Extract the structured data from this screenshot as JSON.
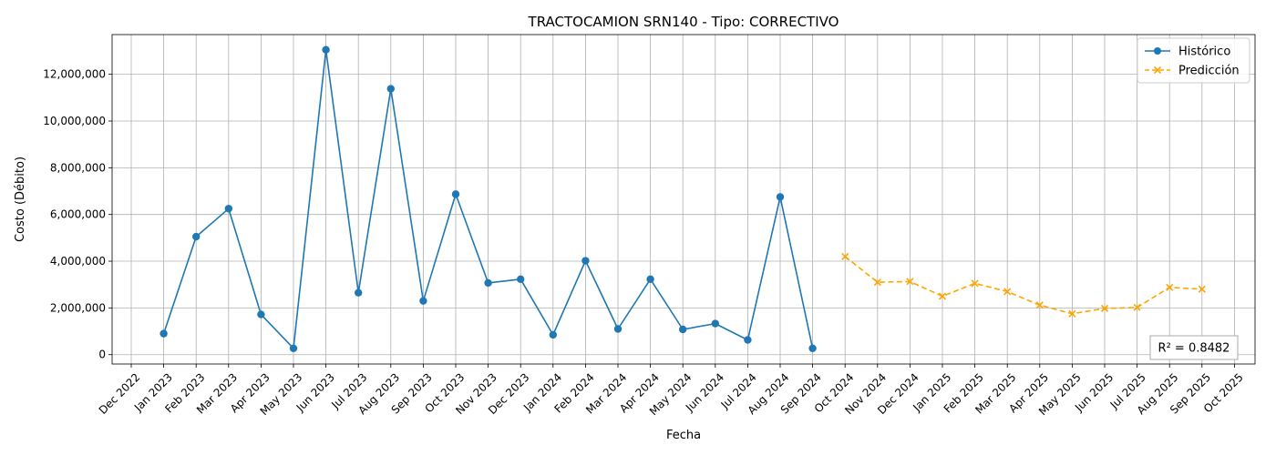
{
  "chart_data": {
    "type": "line",
    "title": "TRACTOCAMION SRN140 - Tipo: CORRECTIVO",
    "xlabel": "Fecha",
    "ylabel": "Costo (Débito)",
    "ylim": [
      -400000,
      13700000
    ],
    "yticks": [
      0,
      2000000,
      4000000,
      6000000,
      8000000,
      10000000,
      12000000
    ],
    "ytick_labels": [
      "0",
      "2,000,000",
      "4,000,000",
      "6,000,000",
      "8,000,000",
      "10,000,000",
      "12,000,000"
    ],
    "xticks": [
      "Dec 2022",
      "Jan 2023",
      "Feb 2023",
      "Mar 2023",
      "Apr 2023",
      "May 2023",
      "Jun 2023",
      "Jul 2023",
      "Aug 2023",
      "Sep 2023",
      "Oct 2023",
      "Nov 2023",
      "Dec 2023",
      "Jan 2024",
      "Feb 2024",
      "Mar 2024",
      "Apr 2024",
      "May 2024",
      "Jun 2024",
      "Jul 2024",
      "Aug 2024",
      "Sep 2024",
      "Oct 2024",
      "Nov 2024",
      "Dec 2024",
      "Jan 2025",
      "Feb 2025",
      "Mar 2025",
      "Apr 2025",
      "May 2025",
      "Jun 2025",
      "Jul 2025",
      "Aug 2025",
      "Sep 2025",
      "Oct 2025"
    ],
    "grid": true,
    "legend_position": "top-right",
    "annotation": "R² = 0.8482",
    "series": [
      {
        "name": "Histórico",
        "color": "#1f77b4",
        "marker": "circle",
        "linestyle": "solid",
        "x": [
          "Jan 2023",
          "Feb 2023",
          "Mar 2023",
          "Apr 2023",
          "May 2023",
          "Jun 2023",
          "Jul 2023",
          "Aug 2023",
          "Sep 2023",
          "Oct 2023",
          "Nov 2023",
          "Dec 2023",
          "Jan 2024",
          "Feb 2024",
          "Mar 2024",
          "Apr 2024",
          "May 2024",
          "Jun 2024",
          "Jul 2024",
          "Aug 2024",
          "Sep 2024"
        ],
        "values": [
          900000,
          5050000,
          6250000,
          1720000,
          270000,
          13050000,
          2650000,
          11380000,
          2300000,
          6870000,
          3070000,
          3230000,
          850000,
          4020000,
          1100000,
          3230000,
          1080000,
          1330000,
          630000,
          6750000,
          270000
        ]
      },
      {
        "name": "Predicción",
        "color": "#ffa500",
        "marker": "x",
        "linestyle": "dashed",
        "x": [
          "Oct 2024",
          "Nov 2024",
          "Dec 2024",
          "Jan 2025",
          "Feb 2025",
          "Mar 2025",
          "Apr 2025",
          "May 2025",
          "Jun 2025",
          "Jul 2025",
          "Aug 2025",
          "Sep 2025"
        ],
        "values": [
          4200000,
          3100000,
          3130000,
          2500000,
          3050000,
          2700000,
          2120000,
          1750000,
          1980000,
          2020000,
          2880000,
          2800000
        ]
      }
    ]
  }
}
